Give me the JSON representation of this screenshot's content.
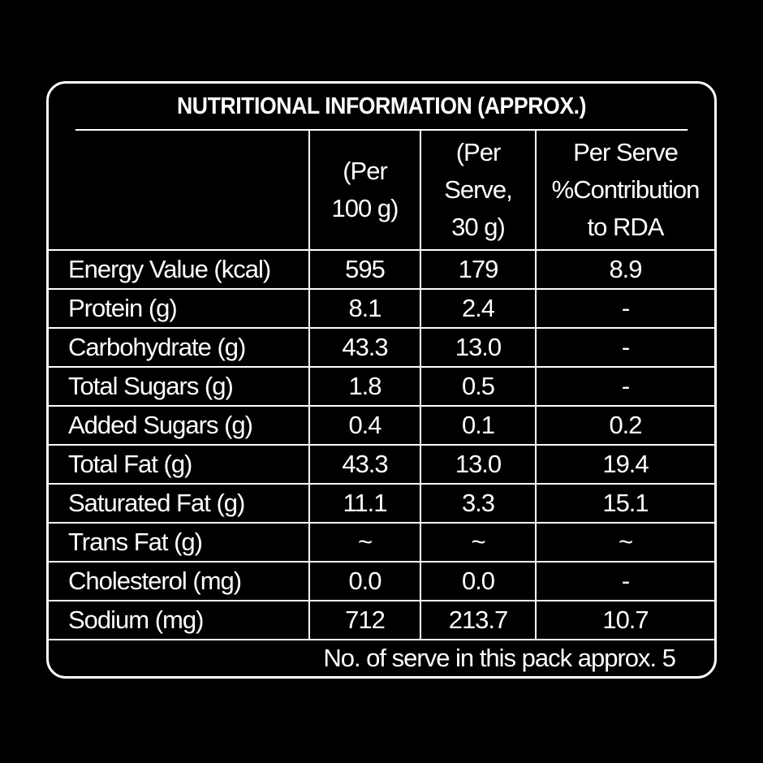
{
  "title": "NUTRITIONAL INFORMATION (APPROX.)",
  "header": {
    "col1": [
      "(Per",
      "100 g)"
    ],
    "col2": [
      "(Per",
      "Serve,",
      "30 g)"
    ],
    "col3": [
      "Per Serve",
      "%Contribution",
      "to RDA"
    ]
  },
  "rows": [
    {
      "nutrient": "Energy Value (kcal)",
      "per100": "595",
      "perServe": "179",
      "rda": "8.9"
    },
    {
      "nutrient": "Protein (g)",
      "per100": "8.1",
      "perServe": "2.4",
      "rda": "-"
    },
    {
      "nutrient": "Carbohydrate (g)",
      "per100": "43.3",
      "perServe": "13.0",
      "rda": "-"
    },
    {
      "nutrient": "Total Sugars (g)",
      "per100": "1.8",
      "perServe": "0.5",
      "rda": "-"
    },
    {
      "nutrient": "Added Sugars (g)",
      "per100": "0.4",
      "perServe": "0.1",
      "rda": "0.2"
    },
    {
      "nutrient": "Total Fat (g)",
      "per100": "43.3",
      "perServe": "13.0",
      "rda": "19.4"
    },
    {
      "nutrient": "Saturated Fat (g)",
      "per100": "11.1",
      "perServe": "3.3",
      "rda": "15.1"
    },
    {
      "nutrient": "Trans Fat (g)",
      "per100": "~",
      "perServe": "~",
      "rda": "~"
    },
    {
      "nutrient": "Cholesterol (mg)",
      "per100": "0.0",
      "perServe": "0.0",
      "rda": "-"
    },
    {
      "nutrient": "Sodium (mg)",
      "per100": "712",
      "perServe": "213.7",
      "rda": "10.7"
    }
  ],
  "footer": "No. of serve in this pack approx. 5"
}
